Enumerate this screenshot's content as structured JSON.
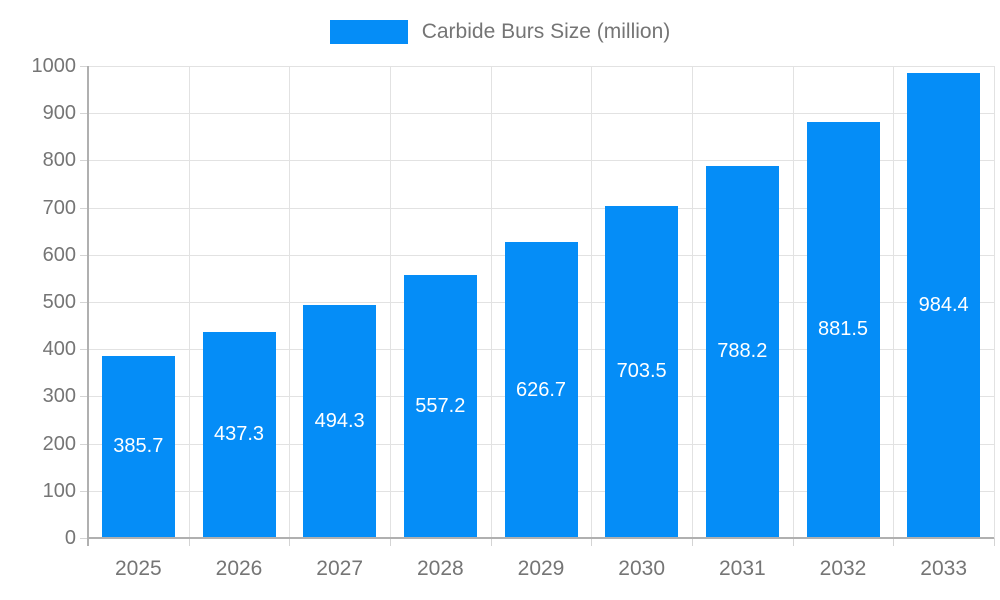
{
  "chart_data": {
    "type": "bar",
    "title": "Carbide Burs Size (million)",
    "categories": [
      "2025",
      "2026",
      "2027",
      "2028",
      "2029",
      "2030",
      "2031",
      "2032",
      "2033"
    ],
    "values": [
      385.7,
      437.3,
      494.3,
      557.2,
      626.7,
      703.5,
      788.2,
      881.5,
      984.4
    ],
    "value_labels": [
      "385.7",
      "437.3",
      "494.3",
      "557.2",
      "626.7",
      "703.5",
      "788.2",
      "881.5",
      "984.4"
    ],
    "xlabel": "",
    "ylabel": "",
    "ylim": [
      0,
      1000
    ],
    "yticks": [
      0,
      100,
      200,
      300,
      400,
      500,
      600,
      700,
      800,
      900,
      1000
    ],
    "grid": true,
    "legend_position": "top-center",
    "colors": {
      "bar": "#058df7",
      "bar_value_text": "#ffffff",
      "tick_text": "#757575",
      "legend_text": "#757575",
      "gridline": "#e2e2e2",
      "axis": "#b0b0b0"
    }
  }
}
